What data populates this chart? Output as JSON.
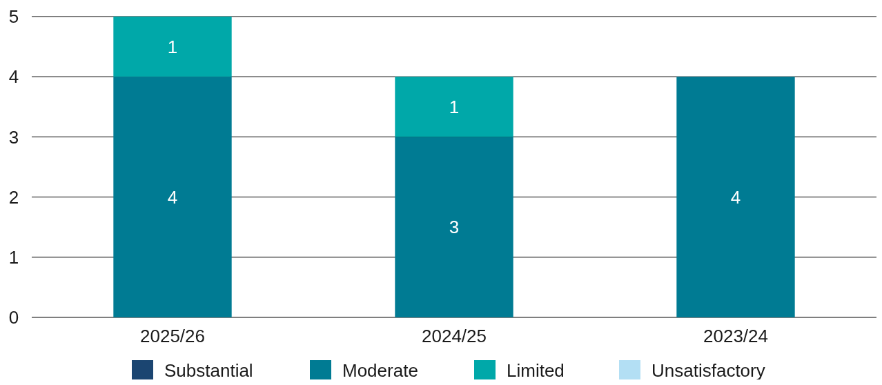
{
  "chart_data": {
    "type": "bar",
    "stacked": true,
    "categories": [
      "2025/26",
      "2024/25",
      "2023/24"
    ],
    "series": [
      {
        "name": "Substantial",
        "color": "#1b4571",
        "values": [
          0,
          0,
          0
        ]
      },
      {
        "name": "Moderate",
        "color": "#007b93",
        "values": [
          4,
          3,
          4
        ],
        "value_labels": [
          "4",
          "3",
          "4"
        ]
      },
      {
        "name": "Limited",
        "color": "#00a8a9",
        "values": [
          1,
          1,
          0
        ],
        "value_labels": [
          "1",
          "1",
          null
        ]
      },
      {
        "name": "Unsatisfactory",
        "color": "#b3dff4",
        "values": [
          0,
          0,
          0
        ]
      }
    ],
    "ylim": [
      0,
      5
    ],
    "yticks": [
      0,
      1,
      2,
      3,
      4,
      5
    ],
    "grid": "y",
    "legend": "bottom"
  }
}
